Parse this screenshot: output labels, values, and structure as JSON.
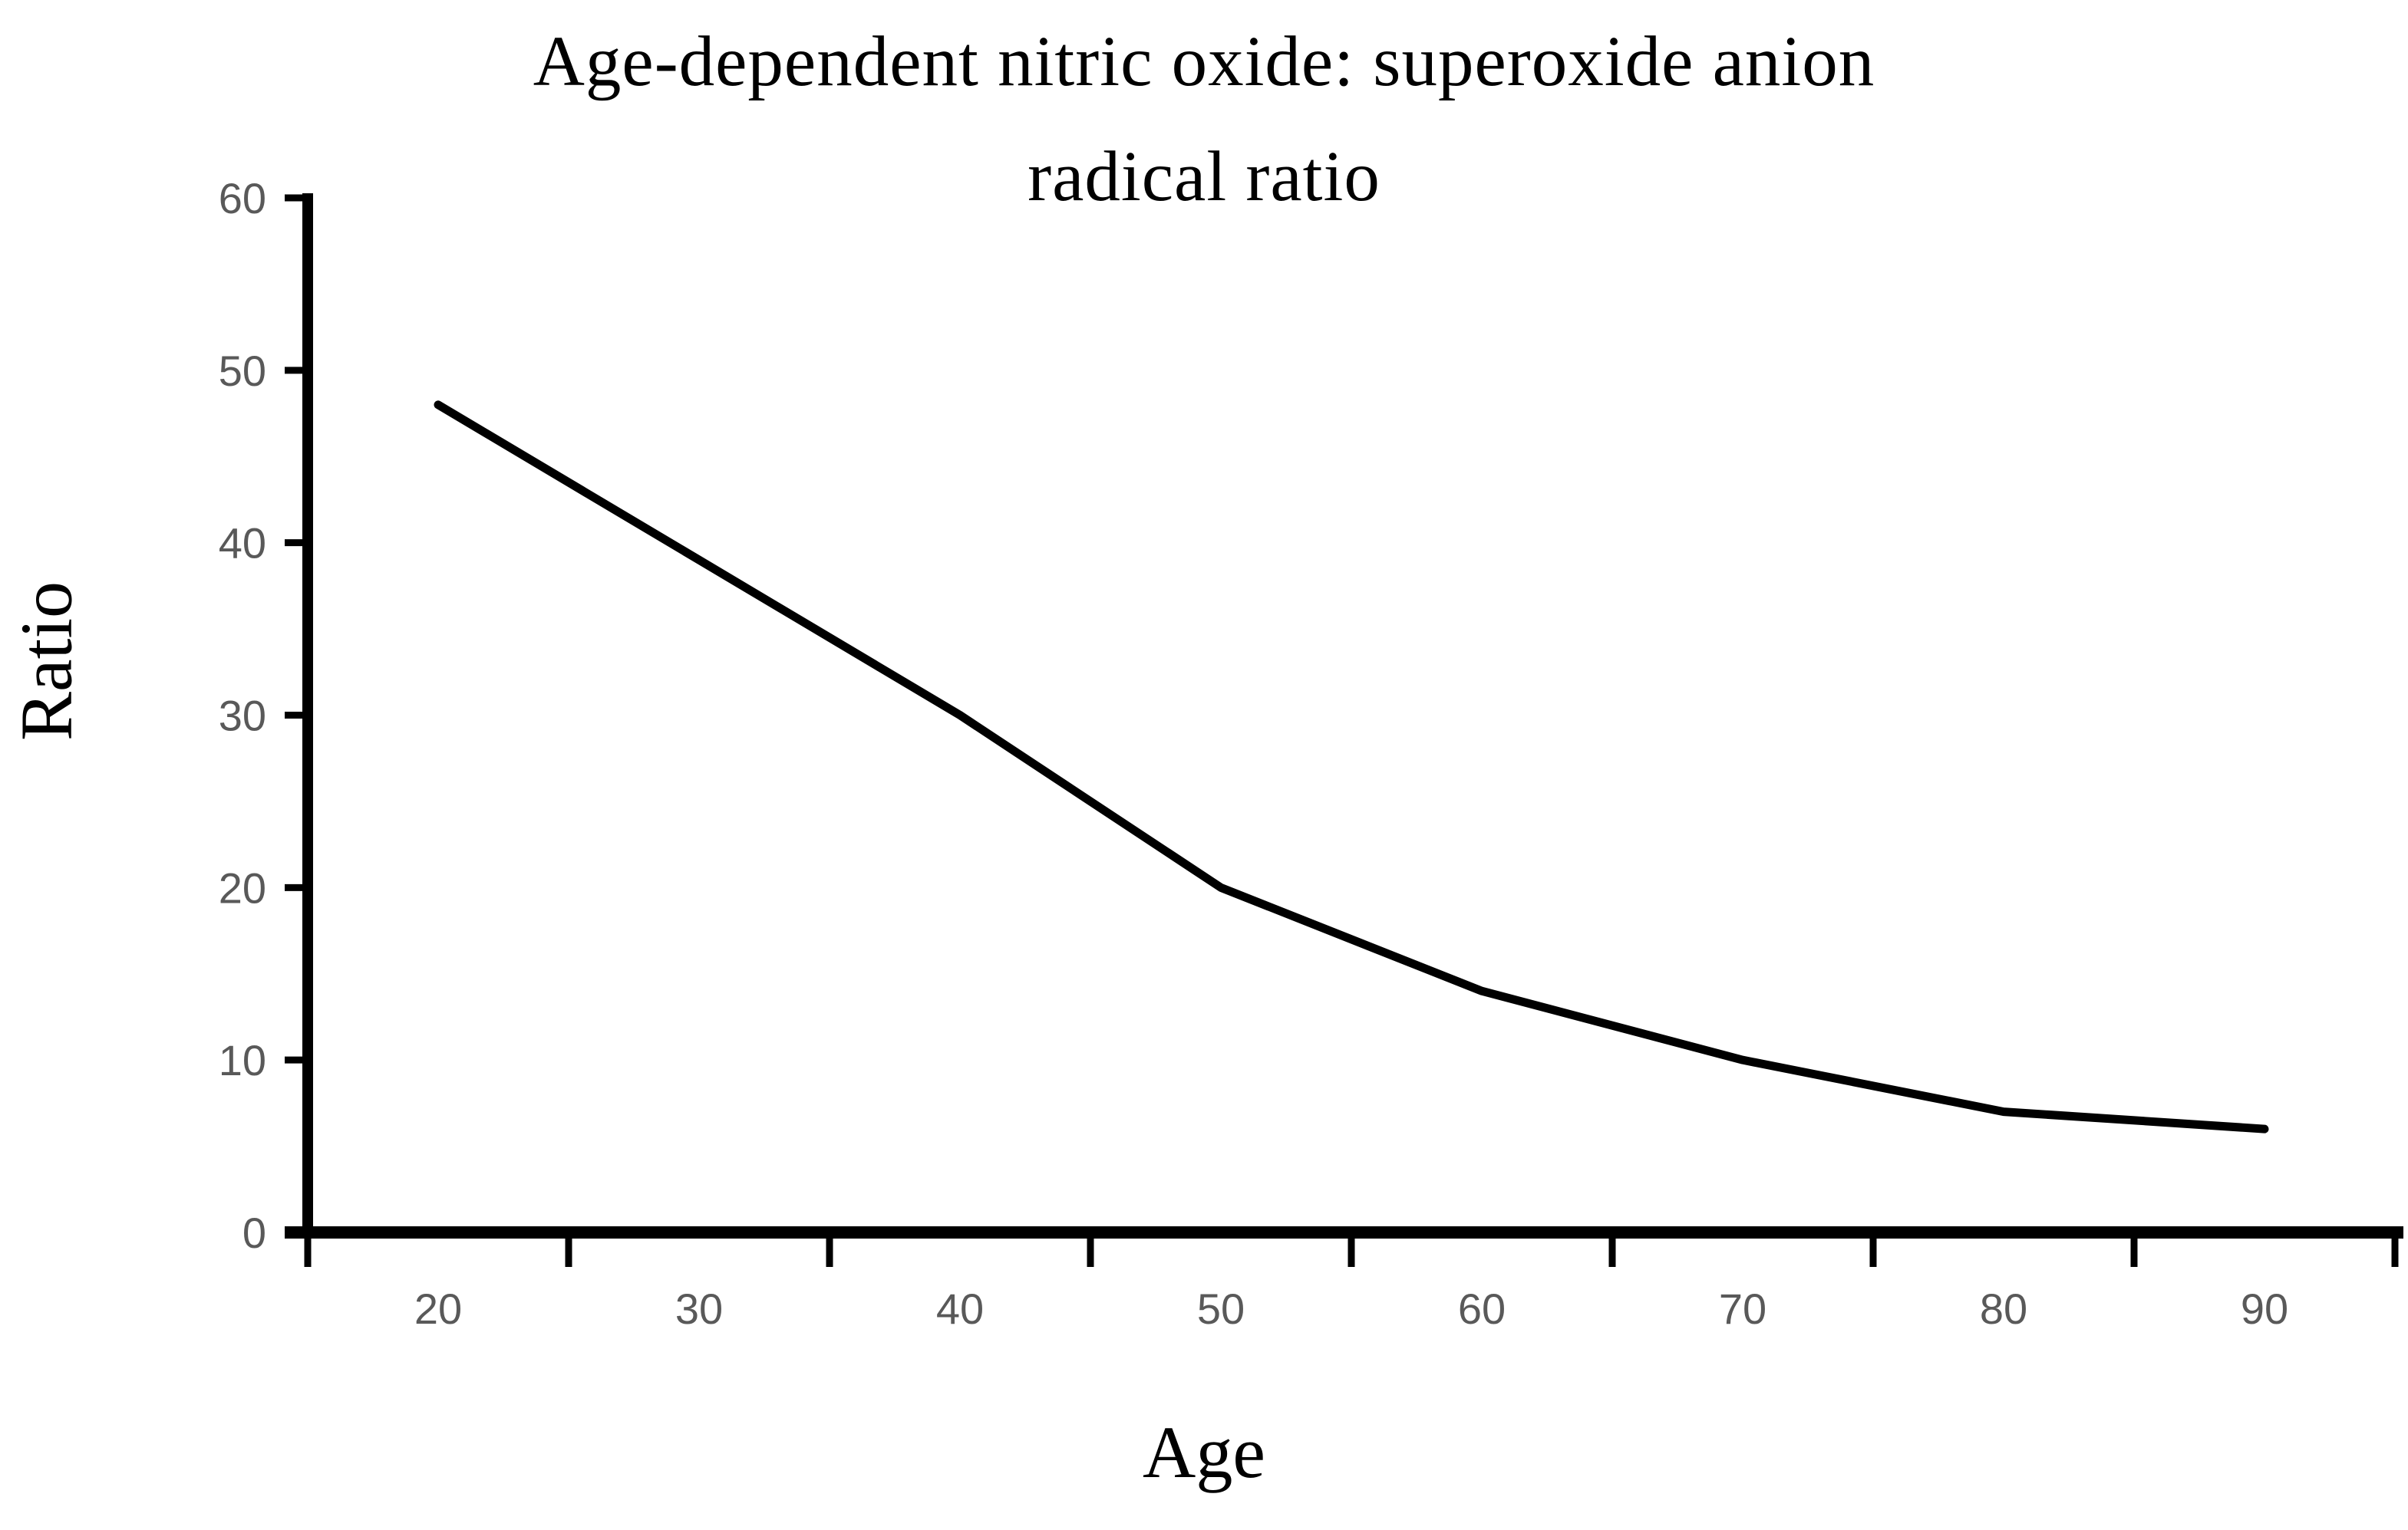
{
  "page": {
    "background": "#ffffff"
  },
  "chart_data": {
    "type": "line",
    "title": "Age-dependent nitric oxide: superoxide anion radical ratio",
    "title_lines": [
      "Age-dependent nitric oxide: superoxide anion",
      "radical ratio"
    ],
    "xlabel": "Age",
    "ylabel": "Ratio",
    "categories": [
      20,
      30,
      40,
      50,
      60,
      70,
      80,
      90
    ],
    "values": [
      48,
      39,
      30,
      20,
      14,
      10,
      7,
      6
    ],
    "ylim": [
      0,
      60
    ],
    "yticks": [
      0,
      10,
      20,
      30,
      40,
      50,
      60
    ],
    "grid": false,
    "legend": false,
    "layout_hints": {
      "x_axis_style": "category axis, tick marks at category boundaries, labels centered between ticks",
      "line_style": "solid black, no markers"
    },
    "colors": {
      "line": "#000000",
      "axis": "#000000",
      "tick_labels": "#595959",
      "text": "#000000"
    }
  }
}
